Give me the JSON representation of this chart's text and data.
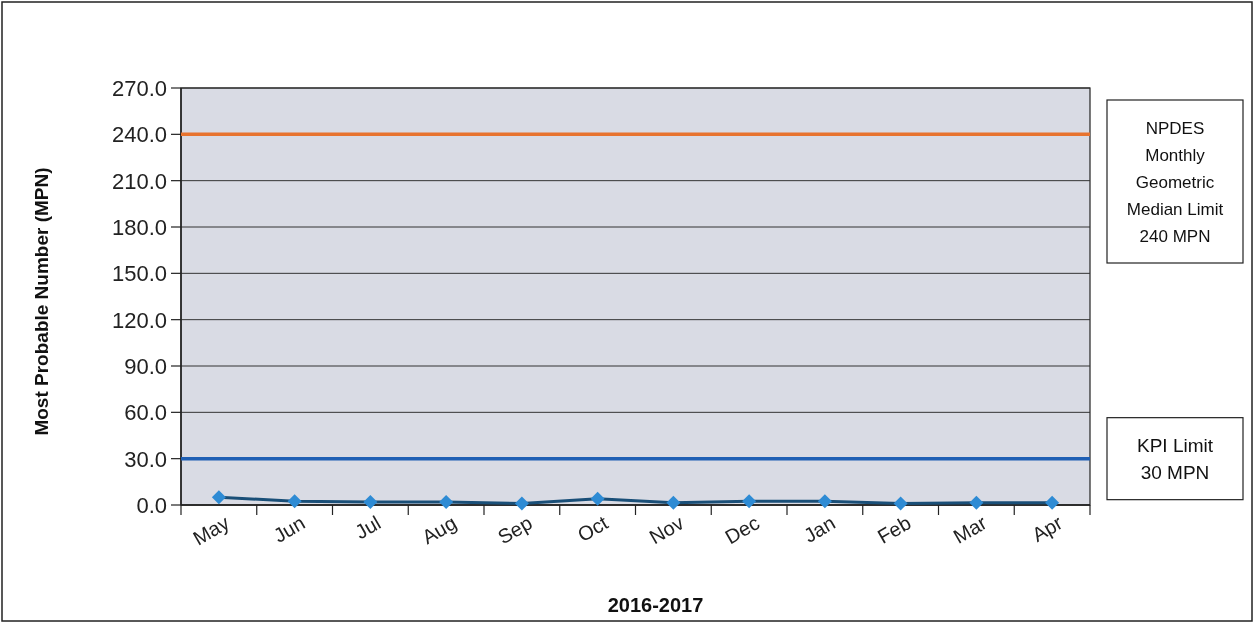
{
  "chart_data": {
    "type": "line",
    "xlabel": "2016-2017",
    "ylabel": "Most Probable Number (MPN)",
    "categories": [
      "May",
      "Jun",
      "Jul",
      "Aug",
      "Sep",
      "Oct",
      "Nov",
      "Dec",
      "Jan",
      "Feb",
      "Mar",
      "Apr"
    ],
    "series": [
      {
        "color": "#2e8bd4",
        "values": [
          5.0,
          2.5,
          2.0,
          2.0,
          1.0,
          4.0,
          1.5,
          2.5,
          2.5,
          1.0,
          1.5,
          1.5
        ]
      }
    ],
    "ylim": [
      0,
      270
    ],
    "yticks": [
      {
        "value": 0,
        "label": "0.0"
      },
      {
        "value": 30,
        "label": "30.0"
      },
      {
        "value": 60,
        "label": "60.0"
      },
      {
        "value": 90,
        "label": "90.0"
      },
      {
        "value": 120,
        "label": "120.0"
      },
      {
        "value": 150,
        "label": "150.0"
      },
      {
        "value": 180,
        "label": "180.0"
      },
      {
        "value": 210,
        "label": "210.0"
      },
      {
        "value": 240,
        "label": "240.0"
      },
      {
        "value": 270,
        "label": "270.0"
      }
    ],
    "grid": "y",
    "marker": "diamond",
    "line_style": "solid",
    "ref_lines": [
      {
        "axis": "y",
        "value": 240,
        "label": "NPDES\nMonthly\nGeometric\nMedian Limit\n240 MPN",
        "color": "#e8732e"
      },
      {
        "axis": "y",
        "value": 30,
        "label": "KPI Limit\n30 MPN",
        "color": "#1f5fb4"
      }
    ]
  }
}
